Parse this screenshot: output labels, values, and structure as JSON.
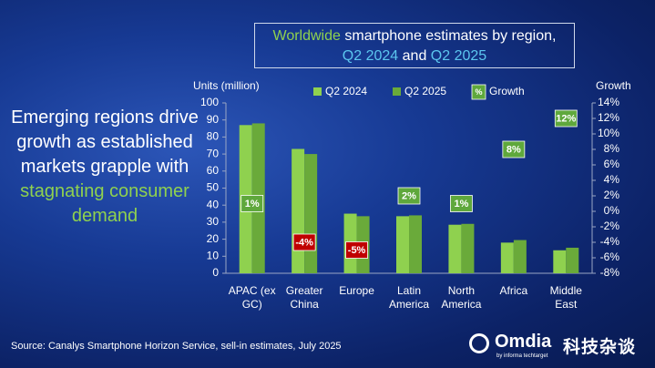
{
  "chart_data": {
    "type": "bar",
    "title": {
      "line1": [
        "Worldwide",
        "smartphone estimates by region,"
      ],
      "line2": [
        "Q2 2024",
        "and",
        "Q2 2025"
      ]
    },
    "headline": [
      "Emerging regions drive growth as established markets grapple with",
      "stagnating consumer demand"
    ],
    "y_axis_label": "Units (million)",
    "y2_axis_label": "Growth",
    "categories": [
      "APAC (ex GC)",
      "Greater China",
      "Europe",
      "Latin America",
      "North America",
      "Africa",
      "Middle East"
    ],
    "series": [
      {
        "name": "Q2 2024",
        "color": "#8fd14f",
        "values": [
          87,
          73,
          35,
          33.5,
          28.5,
          18,
          13.5
        ]
      },
      {
        "name": "Q2 2025",
        "color": "#6aaa3a",
        "values": [
          88,
          70,
          33.5,
          34,
          29,
          19.5,
          15
        ]
      },
      {
        "name": "Growth",
        "axis": "y2",
        "marker_label": "%",
        "color": "#5fa83c",
        "negative_color": "#c00000",
        "values": [
          1,
          -4,
          -5,
          2,
          1,
          8,
          12
        ],
        "value_labels": [
          "1%",
          "-4%",
          "-5%",
          "2%",
          "1%",
          "8%",
          "12%"
        ]
      }
    ],
    "ylim": [
      0,
      100
    ],
    "yticks": [
      0,
      10,
      20,
      30,
      40,
      50,
      60,
      70,
      80,
      90,
      100
    ],
    "y2lim": [
      -8,
      14
    ],
    "y2ticks": [
      {
        "value": -8,
        "label": "-8%"
      },
      {
        "value": -6,
        "label": "-6%"
      },
      {
        "value": -4,
        "label": "-4%"
      },
      {
        "value": -2,
        "label": "-2%"
      },
      {
        "value": 0,
        "label": "0%"
      },
      {
        "value": 2,
        "label": "2%"
      },
      {
        "value": 4,
        "label": "4%"
      },
      {
        "value": 6,
        "label": "6%"
      },
      {
        "value": 8,
        "label": "8%"
      },
      {
        "value": 10,
        "label": "10%"
      },
      {
        "value": 12,
        "label": "12%"
      },
      {
        "value": 14,
        "label": "14%"
      }
    ],
    "source": "Source: Canalys Smartphone Horizon Service, sell-in estimates, July 2025",
    "logo": {
      "name": "Omdia",
      "tagline": "by informa techtarget"
    },
    "watermark": "科技杂谈"
  }
}
